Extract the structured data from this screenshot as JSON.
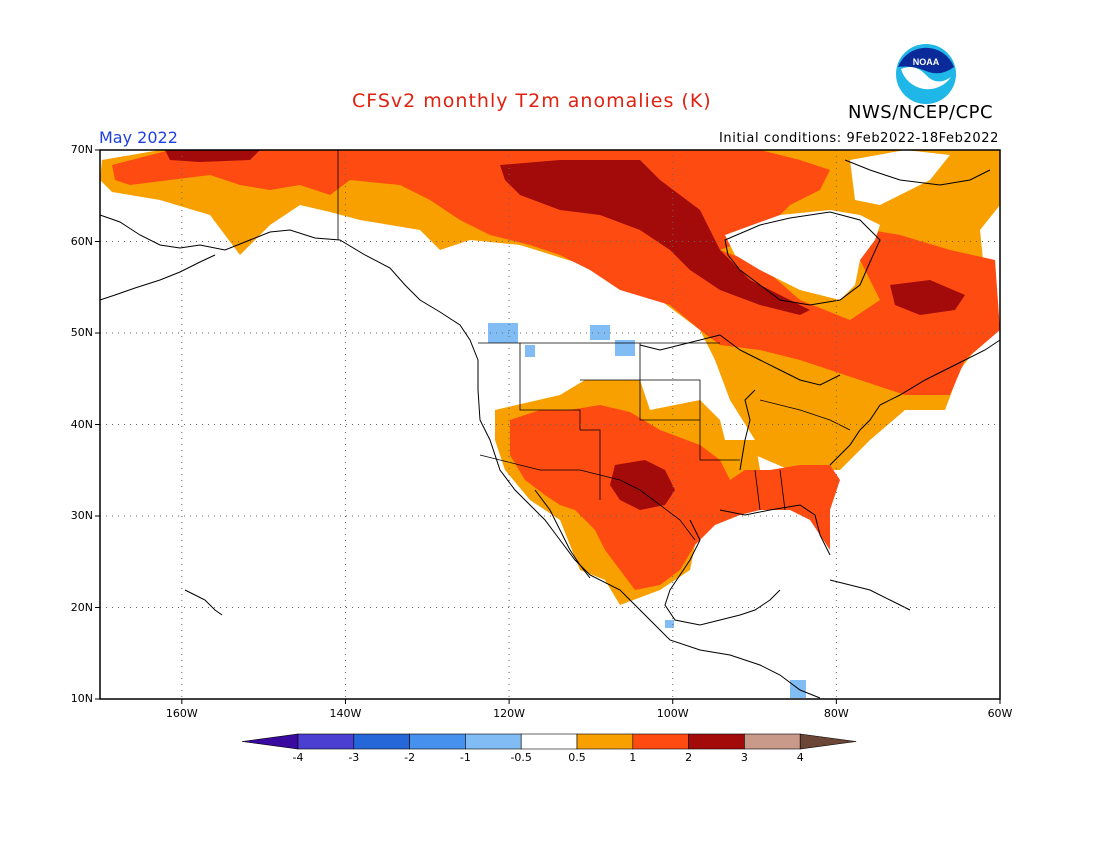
{
  "title": "CFSv2 monthly T2m anomalies (K)",
  "organization": "NWS/NCEP/CPC",
  "logo_text": "NOAA",
  "valid_month": "May 2022",
  "initial_conditions": "Initial conditions: 9Feb2022-18Feb2022",
  "map_extent": {
    "lon_min": -170,
    "lon_max": -60,
    "lat_min": 10,
    "lat_max": 70
  },
  "lat_labels": [
    "10N",
    "20N",
    "30N",
    "40N",
    "50N",
    "60N",
    "70N"
  ],
  "lon_labels": [
    "160W",
    "140W",
    "120W",
    "100W",
    "80W",
    "60W"
  ],
  "colorbar": {
    "labels": [
      "-4",
      "-3",
      "-2",
      "-1",
      "-0.5",
      "0.5",
      "1",
      "2",
      "3",
      "4"
    ],
    "colors": [
      "#3a0aa0",
      "#4a3fd0",
      "#2566d8",
      "#4690ee",
      "#82bcf5",
      "#ffffff",
      "#f7a000",
      "#fd4b12",
      "#a30a0a",
      "#c9998a",
      "#6b4535"
    ]
  },
  "anomaly_colors": {
    "above_0_5": "#f7a000",
    "above_1": "#fd4b12",
    "above_2": "#a30a0a",
    "below_minus_0_5": "#82bcf5",
    "below_minus_1": "#4690ee"
  }
}
